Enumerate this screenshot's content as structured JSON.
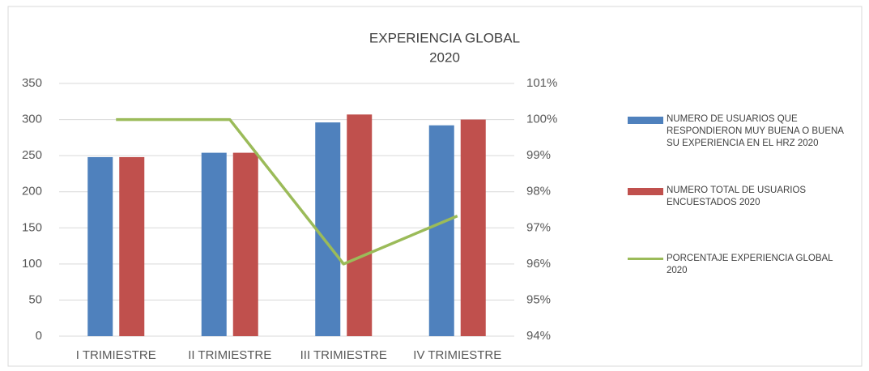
{
  "chart_data": {
    "type": "bar",
    "title": "EXPERIENCIA  GLOBAL",
    "subtitle": "2020",
    "categories": [
      "I TRIMIESTRE",
      "II TRIMIESTRE",
      "III TRIMIESTRE",
      "IV TRIMIESTRE"
    ],
    "series": [
      {
        "name": "NUMERO DE USUARIOS QUE RESPONDIERON MUY BUENA O BUENA SU EXPERIENCIA EN EL HRZ 2020",
        "type": "bar",
        "color": "#4f81bd",
        "values": [
          248,
          254,
          296,
          292
        ]
      },
      {
        "name": "NUMERO  TOTAL DE USUARIOS ENCUESTADOS 2020",
        "type": "bar",
        "color": "#c0504d",
        "values": [
          248,
          254,
          307,
          300
        ]
      },
      {
        "name": "PORCENTAJE EXPERIENCIA GLOBAL 2020",
        "type": "line",
        "axis": "y2",
        "color": "#9bbb59",
        "values": [
          100,
          100,
          96,
          97.33
        ]
      }
    ],
    "ylim": [
      0,
      350
    ],
    "yticks": [
      0,
      50,
      100,
      150,
      200,
      250,
      300,
      350
    ],
    "y2lim": [
      94,
      101
    ],
    "y2ticks": [
      {
        "value": 94,
        "label": "94%"
      },
      {
        "value": 95,
        "label": "95%"
      },
      {
        "value": 96,
        "label": "96%"
      },
      {
        "value": 97,
        "label": "97%"
      },
      {
        "value": 98,
        "label": "98%"
      },
      {
        "value": 99,
        "label": "99%"
      },
      {
        "value": 100,
        "label": "100%"
      },
      {
        "value": 101,
        "label": "101%"
      }
    ],
    "grid": true,
    "legend": "right"
  }
}
